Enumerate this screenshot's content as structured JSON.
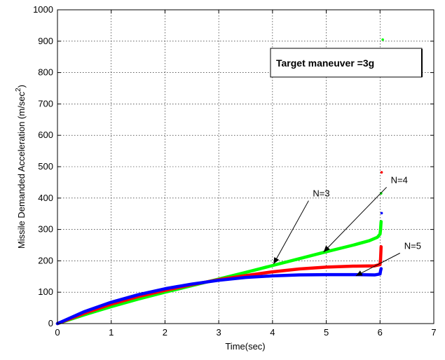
{
  "chart_data": {
    "type": "scatter",
    "xlabel": "Time(sec)",
    "ylabel": "Missile Demanded Acceleration (m/sec",
    "ylabel_sup": "2",
    "ylabel_close": ")",
    "xlim": [
      0,
      7
    ],
    "ylim": [
      0,
      1000
    ],
    "x_ticks": [
      0,
      1,
      2,
      3,
      4,
      5,
      6,
      7
    ],
    "y_ticks": [
      0,
      100,
      200,
      300,
      400,
      500,
      600,
      700,
      800,
      900,
      1000
    ],
    "grid": true,
    "series": [
      {
        "color": "#00ff00",
        "points": [
          [
            0,
            0
          ],
          [
            0.5,
            28
          ],
          [
            1,
            54
          ],
          [
            1.5,
            78
          ],
          [
            2,
            100
          ],
          [
            2.5,
            121
          ],
          [
            3,
            142
          ],
          [
            3.5,
            163
          ],
          [
            4,
            185
          ],
          [
            4.5,
            207
          ],
          [
            5,
            229
          ],
          [
            5.5,
            250
          ],
          [
            5.8,
            264
          ],
          [
            5.95,
            275
          ],
          [
            6,
            285
          ],
          [
            6.01,
            300
          ],
          [
            6.02,
            325
          ],
          [
            6.02,
            415
          ],
          [
            6.05,
            905
          ]
        ]
      },
      {
        "color": "#ff0000",
        "points": [
          [
            0,
            0
          ],
          [
            0.5,
            33
          ],
          [
            1,
            62
          ],
          [
            1.5,
            86
          ],
          [
            2,
            106
          ],
          [
            2.5,
            124
          ],
          [
            3,
            140
          ],
          [
            3.5,
            153
          ],
          [
            4,
            165
          ],
          [
            4.5,
            174
          ],
          [
            5,
            180
          ],
          [
            5.5,
            183
          ],
          [
            5.9,
            184
          ],
          [
            6,
            188
          ],
          [
            6.01,
            205
          ],
          [
            6.02,
            245
          ],
          [
            6.03,
            482
          ]
        ]
      },
      {
        "color": "#0000ff",
        "points": [
          [
            0,
            0
          ],
          [
            0.5,
            38
          ],
          [
            1,
            68
          ],
          [
            1.5,
            92
          ],
          [
            2,
            111
          ],
          [
            2.5,
            126
          ],
          [
            3,
            138
          ],
          [
            3.5,
            147
          ],
          [
            4,
            152
          ],
          [
            4.5,
            155
          ],
          [
            5,
            156
          ],
          [
            5.5,
            156
          ],
          [
            5.9,
            155
          ],
          [
            6,
            158
          ],
          [
            6.01,
            168
          ],
          [
            6.02,
            175
          ],
          [
            6.03,
            352
          ]
        ]
      }
    ],
    "annotations": [
      {
        "text": "N=3",
        "text_x": 4.75,
        "text_y": 405,
        "arrow_to": [
          4.02,
          190
        ]
      },
      {
        "text": "N=4",
        "text_x": 6.2,
        "text_y": 448,
        "arrow_to": [
          4.95,
          228
        ]
      },
      {
        "text": "N=5",
        "text_x": 6.45,
        "text_y": 238,
        "arrow_to": [
          5.55,
          152
        ]
      }
    ],
    "legend_box": "Target maneuver =3g",
    "colors": {
      "axes": "#000000",
      "grid": "#000000",
      "background": "#ffffff"
    }
  }
}
